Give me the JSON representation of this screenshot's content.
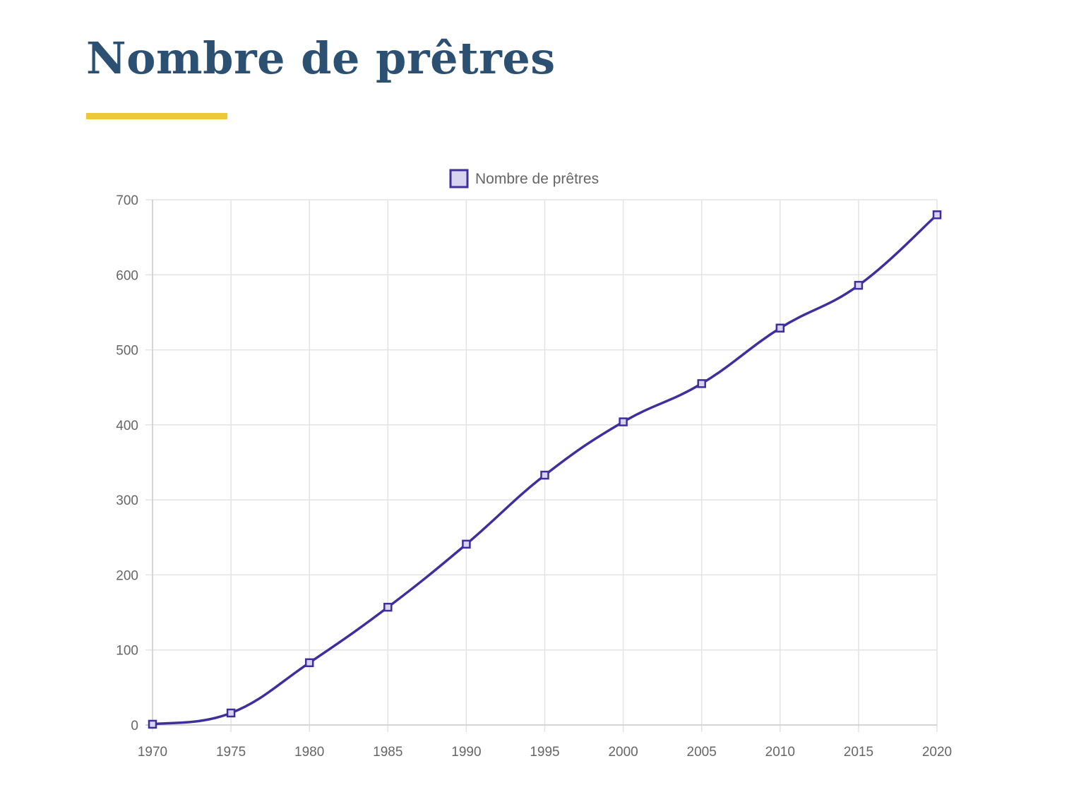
{
  "page": {
    "title": "Nombre de prêtres",
    "title_color": "#2c5072",
    "underline_color": "#ecc83a"
  },
  "chart_data": {
    "type": "line",
    "x": [
      1970,
      1975,
      1980,
      1985,
      1990,
      1995,
      2000,
      2005,
      2010,
      2015,
      2020
    ],
    "series": [
      {
        "name": "Nombre de prêtres",
        "values": [
          1,
          16,
          83,
          157,
          241,
          333,
          404,
          455,
          529,
          586,
          680
        ],
        "color": "#3f2e9e",
        "fill": "#d8d4ef"
      }
    ],
    "xticks": [
      "1970",
      "1975",
      "1980",
      "1985",
      "1990",
      "1995",
      "2000",
      "2005",
      "2010",
      "2015",
      "2020"
    ],
    "yticks": [
      "0",
      "100",
      "200",
      "300",
      "400",
      "500",
      "600",
      "700"
    ],
    "ylim": [
      0,
      700
    ],
    "xlim": [
      1970,
      2020
    ],
    "grid": true,
    "legend": "top-center",
    "curve": "smooth",
    "marker": "square"
  }
}
